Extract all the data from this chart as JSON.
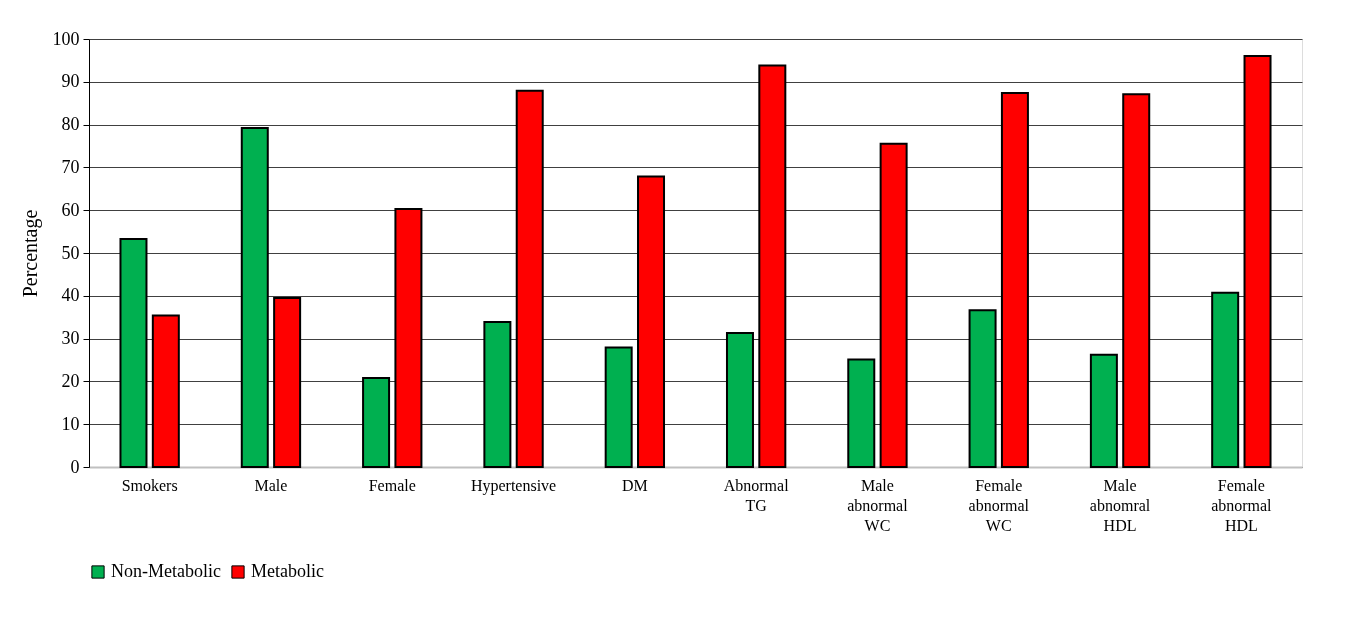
{
  "chart_data": {
    "type": "bar",
    "ylabel": "Percentage",
    "categories": [
      "Smokers",
      "Male",
      "Female",
      "Hypertensive",
      "DM",
      "Abnormal TG",
      "Male abnormal WC",
      "Female abnormal WC",
      "Male abnomral HDL",
      "Female abnormal HDL"
    ],
    "series": [
      {
        "name": "Non-Metabolic",
        "color": "#00b050",
        "values": [
          53.3,
          79.2,
          20.8,
          33.9,
          27.9,
          31.3,
          25.1,
          36.6,
          26.2,
          40.7
        ]
      },
      {
        "name": "Metabolic",
        "color": "#ff0000",
        "values": [
          35.4,
          39.5,
          60.3,
          87.9,
          67.9,
          93.8,
          75.5,
          87.4,
          87.1,
          96.0
        ]
      }
    ],
    "ylim": [
      0,
      100
    ],
    "yticks": [
      0,
      10,
      20,
      30,
      40,
      50,
      60,
      70,
      80,
      90,
      100
    ],
    "grid": "y",
    "legend": "bottom"
  }
}
